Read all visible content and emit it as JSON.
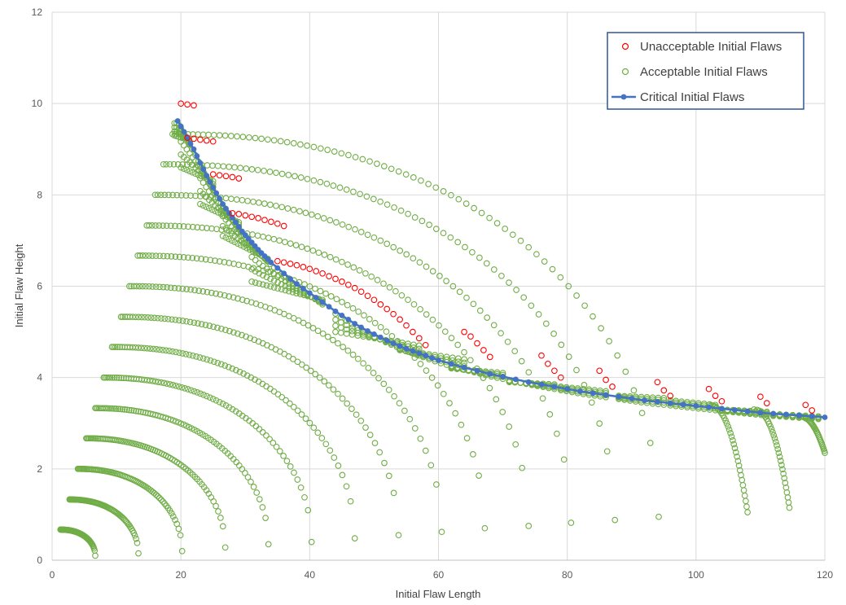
{
  "chart_data": {
    "type": "scatter",
    "title": "",
    "xlabel": "Initial Flaw Length",
    "ylabel": "Initial Flaw Height",
    "xlim": [
      0,
      120
    ],
    "ylim": [
      0,
      12
    ],
    "xticks": [
      0,
      20,
      40,
      60,
      80,
      100,
      120
    ],
    "yticks": [
      0,
      2,
      4,
      6,
      8,
      10,
      12
    ],
    "grid": true,
    "legend_position": "top-right",
    "series": [
      {
        "name": "Unacceptable Initial Flaws",
        "marker": "hollow-circle",
        "color": "#ff0000",
        "points": [
          [
            20,
            10.0
          ],
          [
            21,
            9.98
          ],
          [
            22,
            9.96
          ],
          [
            21,
            9.25
          ],
          [
            22,
            9.23
          ],
          [
            23,
            9.21
          ],
          [
            24,
            9.19
          ],
          [
            25,
            9.17
          ],
          [
            25,
            8.45
          ],
          [
            26,
            8.43
          ],
          [
            27,
            8.41
          ],
          [
            28,
            8.39
          ],
          [
            29,
            8.36
          ],
          [
            28,
            7.6
          ],
          [
            29,
            7.58
          ],
          [
            30,
            7.55
          ],
          [
            31,
            7.52
          ],
          [
            32,
            7.49
          ],
          [
            33,
            7.45
          ],
          [
            34,
            7.41
          ],
          [
            35,
            7.37
          ],
          [
            36,
            7.32
          ],
          [
            35,
            6.55
          ],
          [
            36,
            6.52
          ],
          [
            37,
            6.49
          ],
          [
            38,
            6.46
          ],
          [
            39,
            6.42
          ],
          [
            40,
            6.38
          ],
          [
            41,
            6.33
          ],
          [
            42,
            6.28
          ],
          [
            43,
            6.22
          ],
          [
            44,
            6.16
          ],
          [
            45,
            6.1
          ],
          [
            46,
            6.03
          ],
          [
            47,
            5.96
          ],
          [
            48,
            5.88
          ],
          [
            49,
            5.79
          ],
          [
            50,
            5.7
          ],
          [
            51,
            5.6
          ],
          [
            52,
            5.5
          ],
          [
            53,
            5.39
          ],
          [
            54,
            5.27
          ],
          [
            55,
            5.14
          ],
          [
            56,
            5.0
          ],
          [
            57,
            4.86
          ],
          [
            58,
            4.71
          ],
          [
            64,
            5.0
          ],
          [
            65,
            4.9
          ],
          [
            66,
            4.75
          ],
          [
            67,
            4.6
          ],
          [
            68,
            4.45
          ],
          [
            76,
            4.48
          ],
          [
            77,
            4.3
          ],
          [
            78,
            4.15
          ],
          [
            79,
            4.0
          ],
          [
            85,
            4.15
          ],
          [
            86,
            3.95
          ],
          [
            87,
            3.8
          ],
          [
            94,
            3.9
          ],
          [
            95,
            3.72
          ],
          [
            96,
            3.6
          ],
          [
            102,
            3.75
          ],
          [
            103,
            3.6
          ],
          [
            104,
            3.48
          ],
          [
            110,
            3.58
          ],
          [
            111,
            3.44
          ],
          [
            117,
            3.4
          ],
          [
            118,
            3.28
          ]
        ]
      },
      {
        "name": "Acceptable Initial Flaws",
        "marker": "hollow-circle",
        "color": "#70ad47",
        "arcs": [
          {
            "r": 0.67,
            "x0": 1.3,
            "xe": 6.7,
            "ye": 0.1
          },
          {
            "r": 1.33,
            "x0": 2.7,
            "xe": 13.4,
            "ye": 0.15
          },
          {
            "r": 2.0,
            "x0": 4.0,
            "xe": 20.2,
            "ye": 0.2
          },
          {
            "r": 2.67,
            "x0": 5.3,
            "xe": 26.9,
            "ye": 0.28
          },
          {
            "r": 3.33,
            "x0": 6.7,
            "xe": 33.6,
            "ye": 0.35
          },
          {
            "r": 4.0,
            "x0": 8.0,
            "xe": 40.3,
            "ye": 0.4
          },
          {
            "r": 4.67,
            "x0": 9.3,
            "xe": 47.0,
            "ye": 0.48
          },
          {
            "r": 5.33,
            "x0": 10.7,
            "xe": 53.8,
            "ye": 0.55
          },
          {
            "r": 6.0,
            "x0": 12.0,
            "xe": 60.5,
            "ye": 0.62
          },
          {
            "r": 6.67,
            "x0": 13.3,
            "xe": 67.2,
            "ye": 0.7
          },
          {
            "r": 7.33,
            "x0": 14.7,
            "xe": 74.0,
            "ye": 0.75
          },
          {
            "r": 8.0,
            "x0": 16.0,
            "xe": 80.6,
            "ye": 0.82
          },
          {
            "r": 8.67,
            "x0": 17.3,
            "xe": 87.4,
            "ye": 0.88
          },
          {
            "r": 9.33,
            "x0": 18.7,
            "xe": 94.2,
            "ye": 0.95
          }
        ],
        "fans": [
          {
            "x0": 19.0,
            "y0": 9.3,
            "x1": 21.3,
            "y1": 9.2,
            "n": 8
          },
          {
            "x0": 20.0,
            "y0": 8.6,
            "x1": 25.0,
            "y1": 8.3,
            "n": 12
          },
          {
            "x0": 23.0,
            "y0": 7.8,
            "x1": 29.0,
            "y1": 7.4,
            "n": 14
          },
          {
            "x0": 26.5,
            "y0": 7.1,
            "x1": 33.5,
            "y1": 6.6,
            "n": 16
          },
          {
            "x0": 31.0,
            "y0": 6.1,
            "x1": 42.0,
            "y1": 5.7,
            "n": 20
          },
          {
            "x0": 44.0,
            "y0": 5.0,
            "x1": 57.0,
            "y1": 4.7,
            "n": 16
          },
          {
            "x0": 54.0,
            "y0": 4.6,
            "x1": 64.0,
            "y1": 4.4,
            "n": 12
          },
          {
            "x0": 62.0,
            "y0": 4.2,
            "x1": 70.0,
            "y1": 4.1,
            "n": 10
          },
          {
            "x0": 71.0,
            "y0": 3.9,
            "x1": 78.0,
            "y1": 3.85,
            "n": 9
          },
          {
            "x0": 79.0,
            "y0": 3.8,
            "x1": 86.0,
            "y1": 3.7,
            "n": 9
          },
          {
            "x0": 88.0,
            "y0": 3.6,
            "x1": 95.0,
            "y1": 3.55,
            "n": 9
          },
          {
            "x0": 96.0,
            "y0": 3.5,
            "x1": 103.0,
            "y1": 3.4,
            "n": 9
          },
          {
            "x0": 104.0,
            "y0": 3.3,
            "x1": 111.0,
            "y1": 3.25,
            "n": 9
          },
          {
            "x0": 112.0,
            "y0": 3.2,
            "x1": 119.0,
            "y1": 3.15,
            "n": 8
          }
        ],
        "tails": [
          {
            "xs": 102.0,
            "ys": 3.4,
            "xe": 108.0,
            "ye": 1.05
          },
          {
            "xs": 109.0,
            "ys": 3.3,
            "xe": 114.5,
            "ye": 1.15
          },
          {
            "xs": 116.0,
            "ys": 3.15,
            "xe": 120.0,
            "ye": 2.35
          }
        ]
      },
      {
        "name": "Critical Initial Flaws",
        "marker": "line-with-filled-circle",
        "color": "#4472c4",
        "points": [
          [
            19.5,
            9.62
          ],
          [
            20.0,
            9.5
          ],
          [
            20.5,
            9.38
          ],
          [
            21.0,
            9.25
          ],
          [
            21.5,
            9.12
          ],
          [
            22.0,
            9.0
          ],
          [
            22.5,
            8.85
          ],
          [
            23.0,
            8.7
          ],
          [
            23.5,
            8.56
          ],
          [
            24.0,
            8.42
          ],
          [
            24.5,
            8.28
          ],
          [
            25.0,
            8.16
          ],
          [
            25.5,
            8.04
          ],
          [
            26.0,
            7.92
          ],
          [
            26.5,
            7.8
          ],
          [
            27.0,
            7.7
          ],
          [
            27.5,
            7.6
          ],
          [
            28.0,
            7.5
          ],
          [
            28.5,
            7.4
          ],
          [
            29.0,
            7.3
          ],
          [
            29.5,
            7.2
          ],
          [
            30.0,
            7.12
          ],
          [
            30.5,
            7.04
          ],
          [
            31.0,
            6.96
          ],
          [
            31.5,
            6.88
          ],
          [
            32.0,
            6.8
          ],
          [
            32.5,
            6.73
          ],
          [
            33.0,
            6.66
          ],
          [
            33.5,
            6.59
          ],
          [
            34.0,
            6.52
          ],
          [
            35.0,
            6.4
          ],
          [
            36.0,
            6.28
          ],
          [
            37.0,
            6.16
          ],
          [
            38.0,
            6.05
          ],
          [
            39.0,
            5.95
          ],
          [
            40.0,
            5.85
          ],
          [
            41.0,
            5.75
          ],
          [
            42.0,
            5.65
          ],
          [
            43.0,
            5.55
          ],
          [
            44.0,
            5.45
          ],
          [
            45.0,
            5.36
          ],
          [
            46.0,
            5.27
          ],
          [
            47.0,
            5.18
          ],
          [
            48.0,
            5.1
          ],
          [
            49.0,
            5.02
          ],
          [
            50.0,
            4.95
          ],
          [
            51.0,
            4.88
          ],
          [
            52.0,
            4.81
          ],
          [
            53.0,
            4.75
          ],
          [
            54.0,
            4.69
          ],
          [
            55.0,
            4.63
          ],
          [
            56.0,
            4.58
          ],
          [
            57.0,
            4.53
          ],
          [
            58.0,
            4.48
          ],
          [
            59.0,
            4.43
          ],
          [
            60.0,
            4.38
          ],
          [
            62.0,
            4.3
          ],
          [
            64.0,
            4.22
          ],
          [
            66.0,
            4.15
          ],
          [
            68.0,
            4.08
          ],
          [
            70.0,
            4.02
          ],
          [
            72.0,
            3.96
          ],
          [
            74.0,
            3.9
          ],
          [
            76.0,
            3.85
          ],
          [
            78.0,
            3.8
          ],
          [
            80.0,
            3.75
          ],
          [
            82.0,
            3.7
          ],
          [
            84.0,
            3.66
          ],
          [
            86.0,
            3.62
          ],
          [
            88.0,
            3.58
          ],
          [
            90.0,
            3.54
          ],
          [
            92.0,
            3.5
          ],
          [
            94.0,
            3.47
          ],
          [
            96.0,
            3.44
          ],
          [
            98.0,
            3.41
          ],
          [
            100.0,
            3.38
          ],
          [
            102.0,
            3.35
          ],
          [
            104.0,
            3.32
          ],
          [
            106.0,
            3.29
          ],
          [
            108.0,
            3.26
          ],
          [
            110.0,
            3.23
          ],
          [
            112.0,
            3.21
          ],
          [
            114.0,
            3.19
          ],
          [
            116.0,
            3.17
          ],
          [
            118.0,
            3.15
          ],
          [
            120.0,
            3.13
          ]
        ]
      }
    ]
  }
}
